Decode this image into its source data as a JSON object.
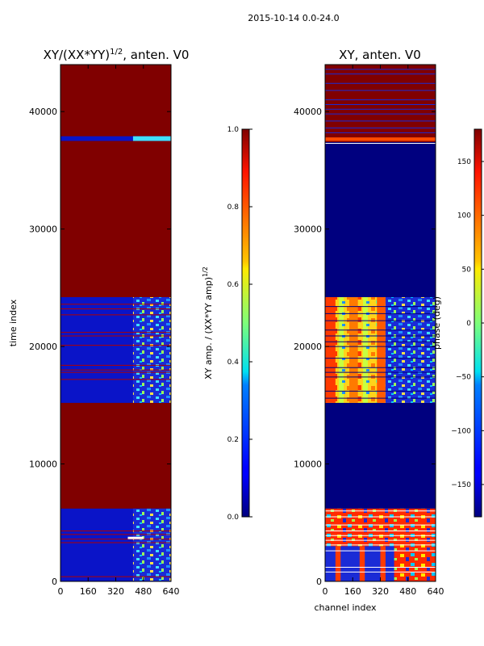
{
  "figure": {
    "suptitle": "2015-10-14 0.0-24.0"
  },
  "chart_data": [
    {
      "type": "heatmap",
      "title": "XY/(XX*YY)^(1/2), anten. V0",
      "title_main": "XY/(XX*YY)",
      "title_sup": "1/2",
      "title_tail": ", anten. V0",
      "xlabel": "",
      "ylabel": "time index",
      "xlim": [
        0,
        640
      ],
      "ylim": [
        0,
        44000
      ],
      "xticks": [
        "0",
        "160",
        "320",
        "480",
        "640"
      ],
      "yticks": [
        "0",
        "10000",
        "20000",
        "30000",
        "40000"
      ],
      "colormap": "jet",
      "colorbar": {
        "label": "XY amp. / (XX*YY amp)^(1/2)",
        "label_main": "XY amp. / (XX*YY amp)",
        "label_sup": "1/2",
        "range": [
          0.0,
          1.0
        ],
        "ticks": [
          "0.0",
          "0.2",
          "0.4",
          "0.6",
          "0.8",
          "1.0"
        ]
      },
      "bands": [
        {
          "from": 0,
          "to": 6200,
          "pattern": "blue with bright columns 420-640"
        },
        {
          "from": 6200,
          "to": 15200,
          "pattern": "dark red (1.0)"
        },
        {
          "from": 15200,
          "to": 24200,
          "pattern": "blue with bright columns 420-640"
        },
        {
          "from": 24200,
          "to": 37500,
          "pattern": "dark red (1.0)"
        },
        {
          "from": 37500,
          "to": 37900,
          "pattern": "blue strip"
        },
        {
          "from": 37900,
          "to": 44000,
          "pattern": "dark red (1.0)"
        }
      ]
    },
    {
      "type": "heatmap",
      "title": "XY, anten. V0",
      "xlabel": "channel index",
      "ylabel": "",
      "xlim": [
        0,
        640
      ],
      "ylim": [
        0,
        44000
      ],
      "xticks": [
        "0",
        "160",
        "320",
        "480",
        "640"
      ],
      "yticks": [
        "0",
        "10000",
        "20000",
        "30000",
        "40000"
      ],
      "colormap": "jet",
      "colorbar": {
        "label": "phase (deg)",
        "range": [
          -180,
          180
        ],
        "ticks": [
          "150",
          "100",
          "50",
          "0",
          "−50",
          "−100",
          "−150"
        ]
      },
      "bands": [
        {
          "from": 0,
          "to": 6200,
          "pattern": "mixed phase, striped"
        },
        {
          "from": 6200,
          "to": 15200,
          "pattern": "dark blue (-180)"
        },
        {
          "from": 15200,
          "to": 24200,
          "pattern": "yellow/red phase stripes"
        },
        {
          "from": 24200,
          "to": 37400,
          "pattern": "dark blue (-180)"
        },
        {
          "from": 37400,
          "to": 44000,
          "pattern": "dark red with blue lines"
        }
      ]
    }
  ]
}
